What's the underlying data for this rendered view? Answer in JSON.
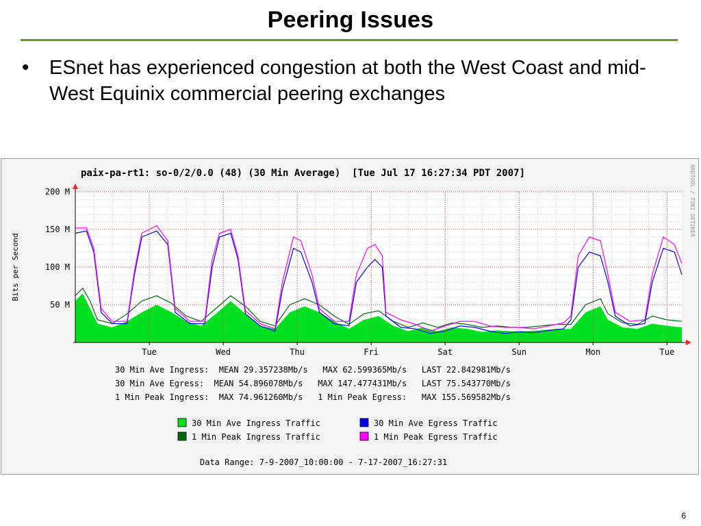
{
  "slide": {
    "title": "Peering Issues",
    "bullet": "ESnet has experienced congestion at both the West Coast and mid-West Equinix commercial peering exchanges",
    "page_number": "6",
    "colors": {
      "title_rule": "#6a9a1f"
    }
  },
  "chart_data": {
    "type": "area",
    "title": "paix-pa-rt1: so-0/2/0.0 (48) (30 Min Average)  [Tue Jul 17 16:27:34 PDT 2007]",
    "ylabel": "Bits per Second",
    "side_label": "RRDTOOL / TOBI OETIKER",
    "ylim": [
      0,
      200
    ],
    "y_ticks": [
      {
        "value": 50,
        "label": "50 M"
      },
      {
        "value": 100,
        "label": "100 M"
      },
      {
        "value": 150,
        "label": "150 M"
      },
      {
        "value": 200,
        "label": "200 M"
      }
    ],
    "x_range": [
      0,
      8.2
    ],
    "x_ticks": [
      {
        "value": 1,
        "label": "Tue"
      },
      {
        "value": 2,
        "label": "Wed"
      },
      {
        "value": 3,
        "label": "Thu"
      },
      {
        "value": 4,
        "label": "Fri"
      },
      {
        "value": 5,
        "label": "Sat"
      },
      {
        "value": 6,
        "label": "Sun"
      },
      {
        "value": 7,
        "label": "Mon"
      },
      {
        "value": 8,
        "label": "Tue"
      }
    ],
    "grid": true,
    "series": [
      {
        "name": "30 Min Ave Ingress Traffic",
        "color": "#00e020",
        "style": "area",
        "points": [
          [
            0,
            55
          ],
          [
            0.1,
            65
          ],
          [
            0.2,
            45
          ],
          [
            0.3,
            25
          ],
          [
            0.5,
            20
          ],
          [
            0.7,
            28
          ],
          [
            0.9,
            40
          ],
          [
            1.1,
            50
          ],
          [
            1.3,
            40
          ],
          [
            1.5,
            28
          ],
          [
            1.7,
            22
          ],
          [
            1.9,
            38
          ],
          [
            2.1,
            55
          ],
          [
            2.3,
            38
          ],
          [
            2.5,
            22
          ],
          [
            2.7,
            18
          ],
          [
            2.9,
            40
          ],
          [
            3.1,
            48
          ],
          [
            3.3,
            40
          ],
          [
            3.5,
            28
          ],
          [
            3.7,
            18
          ],
          [
            3.9,
            30
          ],
          [
            4.1,
            35
          ],
          [
            4.3,
            22
          ],
          [
            4.5,
            15
          ],
          [
            4.7,
            20
          ],
          [
            4.9,
            15
          ],
          [
            5.1,
            20
          ],
          [
            5.3,
            18
          ],
          [
            5.5,
            14
          ],
          [
            5.7,
            16
          ],
          [
            5.9,
            15
          ],
          [
            6.1,
            15
          ],
          [
            6.3,
            16
          ],
          [
            6.5,
            18
          ],
          [
            6.7,
            18
          ],
          [
            6.9,
            40
          ],
          [
            7.1,
            48
          ],
          [
            7.2,
            30
          ],
          [
            7.4,
            20
          ],
          [
            7.6,
            18
          ],
          [
            7.8,
            25
          ],
          [
            8.0,
            22
          ],
          [
            8.2,
            20
          ]
        ]
      },
      {
        "name": "1 Min Peak Ingress Traffic",
        "color": "#006a10",
        "style": "line",
        "points": [
          [
            0,
            62
          ],
          [
            0.1,
            72
          ],
          [
            0.2,
            55
          ],
          [
            0.3,
            30
          ],
          [
            0.5,
            25
          ],
          [
            0.7,
            38
          ],
          [
            0.9,
            55
          ],
          [
            1.1,
            62
          ],
          [
            1.3,
            52
          ],
          [
            1.5,
            35
          ],
          [
            1.7,
            28
          ],
          [
            1.9,
            45
          ],
          [
            2.1,
            62
          ],
          [
            2.3,
            48
          ],
          [
            2.5,
            28
          ],
          [
            2.7,
            22
          ],
          [
            2.9,
            50
          ],
          [
            3.1,
            58
          ],
          [
            3.3,
            50
          ],
          [
            3.5,
            35
          ],
          [
            3.7,
            24
          ],
          [
            3.9,
            38
          ],
          [
            4.1,
            42
          ],
          [
            4.3,
            28
          ],
          [
            4.5,
            20
          ],
          [
            4.7,
            26
          ],
          [
            4.9,
            20
          ],
          [
            5.1,
            26
          ],
          [
            5.3,
            24
          ],
          [
            5.5,
            20
          ],
          [
            5.7,
            22
          ],
          [
            5.9,
            20
          ],
          [
            6.1,
            20
          ],
          [
            6.3,
            22
          ],
          [
            6.5,
            24
          ],
          [
            6.7,
            24
          ],
          [
            6.9,
            50
          ],
          [
            7.1,
            58
          ],
          [
            7.2,
            38
          ],
          [
            7.4,
            26
          ],
          [
            7.6,
            24
          ],
          [
            7.8,
            35
          ],
          [
            8.0,
            30
          ],
          [
            8.2,
            28
          ]
        ]
      },
      {
        "name": "30 Min Ave Egress Traffic",
        "color": "#0000ee",
        "style": "line",
        "points": [
          [
            0,
            145
          ],
          [
            0.15,
            148
          ],
          [
            0.25,
            120
          ],
          [
            0.35,
            40
          ],
          [
            0.5,
            25
          ],
          [
            0.7,
            25
          ],
          [
            0.8,
            90
          ],
          [
            0.9,
            140
          ],
          [
            1.1,
            148
          ],
          [
            1.25,
            130
          ],
          [
            1.35,
            40
          ],
          [
            1.55,
            25
          ],
          [
            1.75,
            25
          ],
          [
            1.85,
            100
          ],
          [
            1.95,
            140
          ],
          [
            2.1,
            145
          ],
          [
            2.2,
            110
          ],
          [
            2.3,
            38
          ],
          [
            2.5,
            22
          ],
          [
            2.7,
            15
          ],
          [
            2.8,
            70
          ],
          [
            2.95,
            125
          ],
          [
            3.05,
            120
          ],
          [
            3.2,
            80
          ],
          [
            3.3,
            40
          ],
          [
            3.5,
            25
          ],
          [
            3.7,
            22
          ],
          [
            3.8,
            80
          ],
          [
            3.95,
            100
          ],
          [
            4.05,
            110
          ],
          [
            4.15,
            100
          ],
          [
            4.2,
            35
          ],
          [
            4.4,
            20
          ],
          [
            4.6,
            18
          ],
          [
            4.8,
            12
          ],
          [
            5.0,
            15
          ],
          [
            5.2,
            22
          ],
          [
            5.4,
            20
          ],
          [
            5.6,
            15
          ],
          [
            5.8,
            12
          ],
          [
            6.0,
            14
          ],
          [
            6.2,
            13
          ],
          [
            6.4,
            16
          ],
          [
            6.6,
            18
          ],
          [
            6.7,
            30
          ],
          [
            6.8,
            100
          ],
          [
            6.95,
            120
          ],
          [
            7.1,
            115
          ],
          [
            7.2,
            80
          ],
          [
            7.3,
            35
          ],
          [
            7.5,
            22
          ],
          [
            7.7,
            25
          ],
          [
            7.8,
            80
          ],
          [
            7.95,
            125
          ],
          [
            8.1,
            120
          ],
          [
            8.2,
            90
          ]
        ]
      },
      {
        "name": "1 Min Peak Egress Traffic",
        "color": "#ff00ff",
        "style": "line",
        "points": [
          [
            0,
            152
          ],
          [
            0.15,
            152
          ],
          [
            0.25,
            125
          ],
          [
            0.35,
            45
          ],
          [
            0.5,
            28
          ],
          [
            0.7,
            28
          ],
          [
            0.8,
            95
          ],
          [
            0.9,
            145
          ],
          [
            1.1,
            155
          ],
          [
            1.25,
            135
          ],
          [
            1.35,
            45
          ],
          [
            1.55,
            28
          ],
          [
            1.75,
            28
          ],
          [
            1.85,
            110
          ],
          [
            1.95,
            145
          ],
          [
            2.1,
            150
          ],
          [
            2.2,
            115
          ],
          [
            2.3,
            42
          ],
          [
            2.5,
            25
          ],
          [
            2.7,
            18
          ],
          [
            2.8,
            80
          ],
          [
            2.95,
            140
          ],
          [
            3.05,
            135
          ],
          [
            3.2,
            90
          ],
          [
            3.3,
            45
          ],
          [
            3.5,
            28
          ],
          [
            3.7,
            28
          ],
          [
            3.8,
            90
          ],
          [
            3.95,
            125
          ],
          [
            4.05,
            130
          ],
          [
            4.15,
            115
          ],
          [
            4.2,
            40
          ],
          [
            4.4,
            30
          ],
          [
            4.6,
            24
          ],
          [
            4.8,
            15
          ],
          [
            5.0,
            22
          ],
          [
            5.2,
            28
          ],
          [
            5.4,
            28
          ],
          [
            5.6,
            22
          ],
          [
            5.8,
            20
          ],
          [
            6.0,
            20
          ],
          [
            6.2,
            18
          ],
          [
            6.4,
            22
          ],
          [
            6.6,
            26
          ],
          [
            6.7,
            35
          ],
          [
            6.8,
            115
          ],
          [
            6.95,
            140
          ],
          [
            7.1,
            135
          ],
          [
            7.2,
            90
          ],
          [
            7.3,
            40
          ],
          [
            7.5,
            28
          ],
          [
            7.7,
            30
          ],
          [
            7.8,
            90
          ],
          [
            7.95,
            140
          ],
          [
            8.1,
            130
          ],
          [
            8.2,
            105
          ]
        ]
      }
    ],
    "stats": [
      "30 Min Ave Ingress:  MEAN 29.357238Mb/s   MAX 62.599365Mb/s   LAST 22.842981Mb/s",
      "30 Min Ave Egress:  MEAN 54.896078Mb/s   MAX 147.477431Mb/s   LAST 75.543770Mb/s",
      "1 Min Peak Ingress:  MAX 74.961260Mb/s   1 Min Peak Egress:   MAX 155.569582Mb/s"
    ],
    "legend": [
      {
        "label": "30 Min Ave Ingress Traffic",
        "color": "#00e020"
      },
      {
        "label": "30 Min Ave Egress Traffic",
        "color": "#0000ee"
      },
      {
        "label": "1 Min Peak Ingress Traffic",
        "color": "#006a10"
      },
      {
        "label": "1 Min Peak Egress Traffic",
        "color": "#ff00ff"
      }
    ],
    "data_range": "Data Range: 7-9-2007_10:00:00 - 7-17-2007_16:27:31"
  }
}
